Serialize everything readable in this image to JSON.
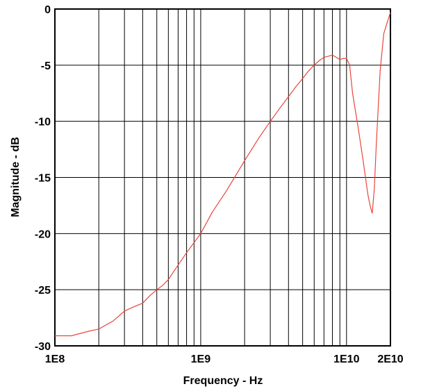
{
  "chart_data": {
    "type": "line",
    "xlabel": "Frequency - Hz",
    "ylabel": "Magnitude - dB",
    "x_scale": "log",
    "xlim": [
      100000000,
      20000000000
    ],
    "ylim": [
      -30,
      0
    ],
    "grid": true,
    "x_tick_values": [
      100000000,
      1000000000,
      10000000000,
      20000000000
    ],
    "x_tick_labels": [
      "1E8",
      "1E9",
      "1E10",
      "2E10"
    ],
    "y_ticks": [
      0,
      -5,
      -10,
      -15,
      -20,
      -25,
      -30
    ],
    "y_tick_labels": [
      "0",
      "-5",
      "-10",
      "-15",
      "-20",
      "-25",
      "-30"
    ],
    "line_color": "#e8453c",
    "series": [
      {
        "x": [
          100000000,
          130000000,
          170000000,
          200000000,
          250000000,
          300000000,
          350000000,
          400000000,
          450000000,
          500000000,
          550000000,
          600000000,
          700000000,
          800000000,
          900000000,
          1000000000,
          1200000000,
          1500000000,
          2000000000,
          2500000000,
          3000000000,
          3500000000,
          4000000000,
          4500000000,
          5000000000,
          5500000000,
          6000000000,
          6500000000,
          7000000000,
          7500000000,
          8000000000,
          8500000000,
          9000000000,
          9500000000,
          10000000000,
          10500000000,
          11000000000,
          12000000000,
          13000000000,
          14000000000,
          14500000000,
          15000000000,
          15500000000,
          16000000000,
          17000000000,
          18000000000,
          19000000000,
          20000000000
        ],
        "y": [
          -29.1,
          -29.1,
          -28.7,
          -28.5,
          -27.8,
          -26.9,
          -26.5,
          -26.2,
          -25.5,
          -25.0,
          -24.6,
          -24.1,
          -22.8,
          -21.7,
          -20.8,
          -20.0,
          -18.1,
          -16.2,
          -13.5,
          -11.5,
          -10.0,
          -8.8,
          -7.8,
          -6.9,
          -6.2,
          -5.5,
          -5.0,
          -4.6,
          -4.3,
          -4.2,
          -4.1,
          -4.3,
          -4.5,
          -4.4,
          -4.4,
          -5.0,
          -7.5,
          -10.5,
          -13.5,
          -16.5,
          -17.5,
          -18.2,
          -16.0,
          -12.0,
          -5.5,
          -2.2,
          -1.2,
          -0.3
        ]
      }
    ]
  }
}
